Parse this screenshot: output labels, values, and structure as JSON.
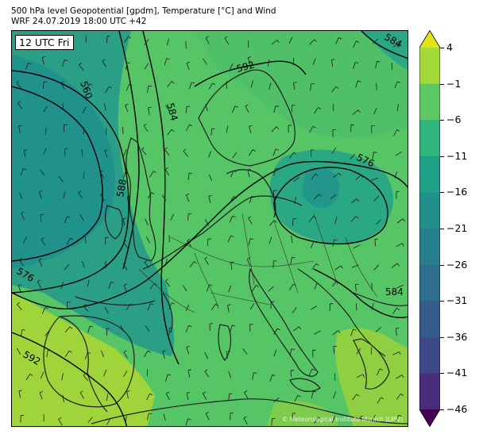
{
  "header": {
    "line1": "500 hPa level Geopotential [gpdm], Temperature [°C] and Wind",
    "line2": "WRF 24.07.2019 18:00 UTC +42"
  },
  "map": {
    "time_label": "12 UTC Fri",
    "copyright": "© Meteorological Institute Munich (LMU)",
    "contour_labels": [
      "560",
      "584",
      "592",
      "584",
      "576",
      "588",
      "576",
      "592",
      "584"
    ],
    "colors": {
      "teal_dark": "#21918c",
      "teal": "#2a9f86",
      "green_mid": "#3bb46f",
      "green_light": "#5ac864",
      "lime": "#a0d63a",
      "blue": "#2c718e",
      "coast": "#222222"
    }
  },
  "colorbar": {
    "ticks": [
      "4",
      "−1",
      "−6",
      "−11",
      "−16",
      "−21",
      "−26",
      "−31",
      "−36",
      "−41",
      "−46"
    ],
    "colors": [
      "#e2e418",
      "#a2da37",
      "#5ec962",
      "#2fb47c",
      "#1fa187",
      "#21908d",
      "#277f8e",
      "#2e6e8e",
      "#365c8d",
      "#3f4889",
      "#472d7b",
      "#440154"
    ]
  }
}
